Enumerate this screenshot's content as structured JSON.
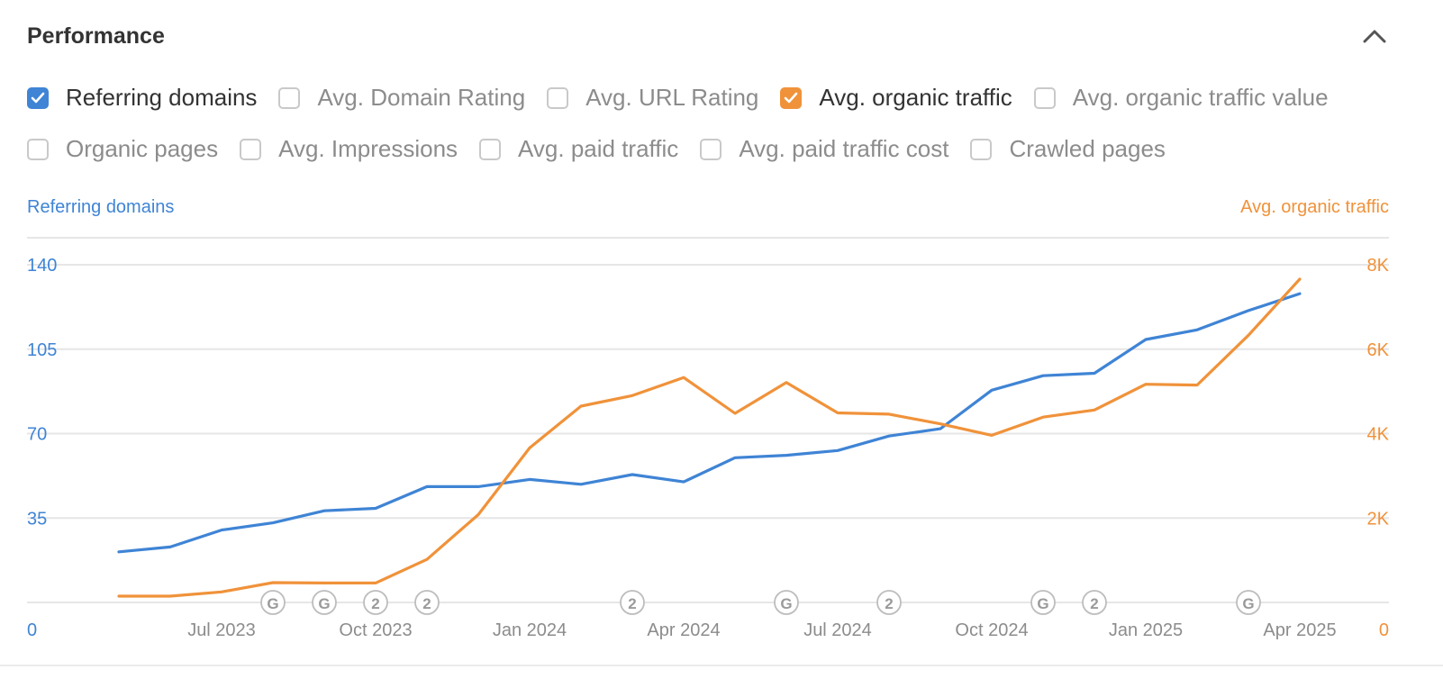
{
  "panel": {
    "title": "Performance",
    "collapse_icon": "chevron-up-icon"
  },
  "metrics_row1": [
    {
      "label": "Referring domains",
      "checked": true,
      "color": "#3f84d5"
    },
    {
      "label": "Avg. Domain Rating",
      "checked": false
    },
    {
      "label": "Avg. URL Rating",
      "checked": false
    },
    {
      "label": "Avg. organic traffic",
      "checked": true,
      "color": "#f0923a"
    },
    {
      "label": "Avg. organic traffic value",
      "checked": false
    }
  ],
  "metrics_row2": [
    {
      "label": "Organic pages",
      "checked": false
    },
    {
      "label": "Avg. Impressions",
      "checked": false
    },
    {
      "label": "Avg. paid traffic",
      "checked": false
    },
    {
      "label": "Avg. paid traffic cost",
      "checked": false
    },
    {
      "label": "Crawled pages",
      "checked": false
    }
  ],
  "chart_data": {
    "type": "line",
    "left_axis": {
      "title": "Referring domains",
      "ticks": [
        0,
        35,
        70,
        105,
        140
      ],
      "tick_labels": [
        "0",
        "35",
        "70",
        "105",
        "140"
      ],
      "range": [
        0,
        140
      ],
      "color": "#3f84d5"
    },
    "right_axis": {
      "title": "Avg. organic traffic",
      "ticks": [
        0,
        2000,
        4000,
        6000,
        8000
      ],
      "tick_labels": [
        "0",
        "2K",
        "4K",
        "6K",
        "8K"
      ],
      "range": [
        0,
        8000
      ],
      "color": "#f0923a"
    },
    "x_ticks": [
      "Jul 2023",
      "Oct 2023",
      "Jan 2024",
      "Apr 2024",
      "Jul 2024",
      "Oct 2024",
      "Jan 2025",
      "Apr 2025"
    ],
    "x_tick_index": [
      2,
      5,
      8,
      11,
      14,
      17,
      20,
      23
    ],
    "x_points": 24,
    "grid": true,
    "series": [
      {
        "name": "Referring domains",
        "axis": "left",
        "color": "#3f84d5",
        "values": [
          21,
          23,
          30,
          33,
          38,
          39,
          48,
          48,
          51,
          49,
          53,
          50,
          60,
          61,
          63,
          69,
          72,
          88,
          94,
          95,
          109,
          113,
          121,
          128
        ]
      },
      {
        "name": "Avg. organic traffic",
        "axis": "right",
        "color": "#f0923a",
        "values": [
          150,
          150,
          250,
          470,
          460,
          460,
          1020,
          2080,
          3660,
          4650,
          4900,
          5330,
          4480,
          5210,
          4490,
          4460,
          4230,
          3960,
          4390,
          4560,
          5170,
          5150,
          6330,
          7660
        ]
      }
    ],
    "annotations": [
      {
        "x_index": 3,
        "label": "G"
      },
      {
        "x_index": 4,
        "label": "G"
      },
      {
        "x_index": 5,
        "label": "2"
      },
      {
        "x_index": 6,
        "label": "2"
      },
      {
        "x_index": 10,
        "label": "2"
      },
      {
        "x_index": 13,
        "label": "G"
      },
      {
        "x_index": 15,
        "label": "2"
      },
      {
        "x_index": 18,
        "label": "G"
      },
      {
        "x_index": 19,
        "label": "2"
      },
      {
        "x_index": 22,
        "label": "G"
      }
    ]
  }
}
